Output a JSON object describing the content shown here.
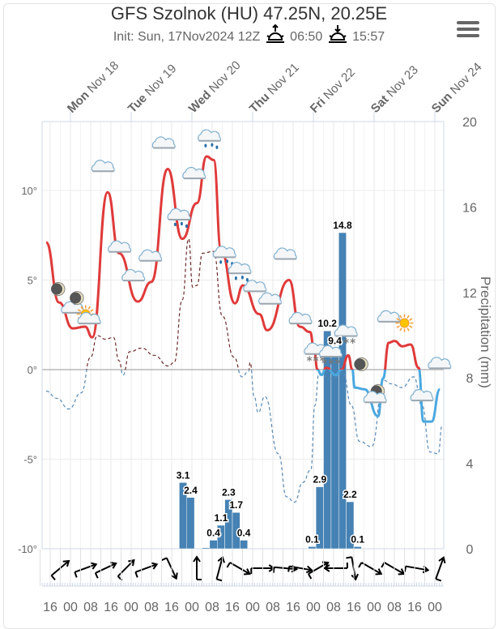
{
  "header": {
    "title": "GFS Szolnok (HU) 47.25N, 20.25E",
    "init": "Init: Sun, 17Nov2024 12Z",
    "sunrise": "06:50",
    "sunset": "15:57",
    "menu_icon": "hamburger-icon"
  },
  "chart_data": {
    "type": "meteogram",
    "title": "GFS Szolnok (HU) 47.25N, 20.25E",
    "x_unit": "hours since Mon Nov 18 00:00",
    "xlim": [
      -11.2,
      147.5
    ],
    "days": [
      {
        "name": "Mon",
        "date": "Nov 18"
      },
      {
        "name": "Tue",
        "date": "Nov 19"
      },
      {
        "name": "Wed",
        "date": "Nov 20"
      },
      {
        "name": "Thu",
        "date": "Nov 21"
      },
      {
        "name": "Fri",
        "date": "Nov 22"
      },
      {
        "name": "Sat",
        "date": "Nov 23"
      },
      {
        "name": "Sun",
        "date": "Nov 24"
      }
    ],
    "hour_ticks": [
      "16",
      "00",
      "08",
      "16",
      "00",
      "08",
      "16",
      "00",
      "08",
      "16",
      "00",
      "08",
      "16",
      "00",
      "08",
      "16",
      "00",
      "08",
      "16",
      "00"
    ],
    "temp_axis": {
      "ticks": [
        "10°",
        "5°",
        "0°",
        "-5°",
        "-10°"
      ],
      "values": [
        10,
        5,
        0,
        -5,
        -10
      ],
      "ylim": [
        -10,
        13.8
      ]
    },
    "precip_axis": {
      "label": "Precipitation (mm)",
      "ticks": [
        "20",
        "16",
        "12",
        "8",
        "4",
        "0"
      ],
      "values": [
        20,
        16,
        12,
        8,
        4,
        0
      ],
      "ylim": [
        0,
        20
      ]
    },
    "temperature": {
      "color_above": "#e03a3a",
      "color_below": "#4aa8e0",
      "h": [
        -9.6,
        -4.5,
        0.9,
        5.8,
        8.6,
        14.7,
        19.2,
        26.6,
        32,
        38.4,
        44.2,
        50,
        53.8,
        56.6,
        59.5,
        65,
        68.2,
        74.6,
        77.8,
        86.4,
        90.6,
        94.7,
        96.3,
        97.6,
        99.2,
        101.1,
        104.9,
        107.1,
        109.8,
        111.4,
        112.3,
        116.2,
        121.6,
        123.5,
        125.8,
        128,
        131.2,
        134.4,
        137.6,
        139.5,
        142.7,
        146
      ]
    },
    "temperature_values": [
      7.1,
      3.75,
      2.3,
      2.4,
      1.8,
      9.9,
      6.5,
      3.8,
      4.9,
      11.2,
      7.3,
      9.3,
      11.9,
      11.7,
      6.7,
      3.7,
      4.7,
      3.1,
      2.2,
      5.0,
      2.4,
      2.1,
      1.1,
      0,
      -0.3,
      0.1,
      -0.3,
      0,
      0.8,
      0,
      -1.0,
      -1.1,
      -2.6,
      -0.5,
      1.5,
      1.6,
      1.3,
      1.4,
      0.1,
      -2.9,
      -2.9,
      -1.1
    ],
    "dewpoint": {
      "h": [
        -9.6,
        -5.4,
        -0.6,
        4.2,
        8,
        10.6,
        13.8,
        17,
        19.2,
        20.8,
        23.4,
        28.2,
        33,
        38.7,
        41,
        44.2,
        46.7,
        48.3,
        50,
        52.2,
        56.6,
        60,
        64.6,
        67.8,
        70.4,
        71,
        72.6,
        74.2,
        76.8,
        82.2,
        85.4,
        88.6,
        91.8,
        95,
        96.6,
        98.2,
        103,
        107.8,
        111,
        114.2,
        119,
        123.8,
        127,
        130.9,
        135.7,
        138.9,
        142.1,
        145.3,
        146.9
      ],
      "values": [
        -1.2,
        -1.6,
        -2.2,
        -1.3,
        0.7,
        1.9,
        1.7,
        1.8,
        0.5,
        -0.3,
        1.0,
        1.2,
        0.8,
        0.2,
        0.4,
        3.9,
        7.3,
        4.6,
        4.7,
        6.5,
        6.6,
        3.0,
        0.7,
        -0.4,
        -0.1,
        0.4,
        -1.5,
        -2.4,
        -1.5,
        -4.7,
        -7.1,
        -7.4,
        -6.3,
        -5.6,
        -2.0,
        -0.2,
        -0.5,
        -0.2,
        -2.0,
        -4.0,
        -4.3,
        -0.6,
        -0.8,
        -1.0,
        -0.4,
        -2.0,
        -4.6,
        -4.7,
        -3.1
      ],
      "color_above": "#6b2a2a",
      "color_below": "#5a8ab5"
    },
    "precipitation": {
      "color": "#4682b4",
      "bar_hours": 3,
      "start_h": [
        43,
        46,
        52,
        55,
        58,
        61,
        64,
        67,
        94,
        97,
        100,
        103,
        106,
        109,
        112
      ],
      "values": [
        3.1,
        2.4,
        0.05,
        0.4,
        1.1,
        2.3,
        1.7,
        0.4,
        0.1,
        2.9,
        10.2,
        9.4,
        14.8,
        2.2,
        0.1
      ],
      "labels": [
        "3.1",
        "2.4",
        "",
        "0.4",
        "1.1",
        "2.3",
        "1.7",
        "0.4",
        "0.1",
        "2.9",
        "10.2",
        "9.4",
        "14.8",
        "2.2",
        "0.1"
      ]
    },
    "symbols": [
      {
        "type": "moon",
        "h": -4.8,
        "t": 4.5
      },
      {
        "type": "cloud",
        "h": 1,
        "t": 3.4
      },
      {
        "type": "moon",
        "h": 2.6,
        "t": 4.0
      },
      {
        "type": "sun",
        "h": 6,
        "t": 3.1
      },
      {
        "type": "cloud",
        "h": 7.5,
        "t": 2.8
      },
      {
        "type": "cloud",
        "h": 13,
        "t": 11.3
      },
      {
        "type": "cloud",
        "h": 19.5,
        "t": 6.8
      },
      {
        "type": "cloud",
        "h": 25,
        "t": 5.2
      },
      {
        "type": "cloud",
        "h": 31.7,
        "t": 6.3
      },
      {
        "type": "cloud",
        "h": 37,
        "t": 12.6
      },
      {
        "type": "rain",
        "h": 43,
        "t": 8.6
      },
      {
        "type": "cloud",
        "h": 49,
        "t": 10.9
      },
      {
        "type": "rain",
        "h": 55,
        "t": 13.0
      },
      {
        "type": "rain",
        "h": 61,
        "t": 6.5
      },
      {
        "type": "rain",
        "h": 67,
        "t": 5.6
      },
      {
        "type": "cloud",
        "h": 73,
        "t": 4.6
      },
      {
        "type": "cloud",
        "h": 79,
        "t": 3.9
      },
      {
        "type": "cloud",
        "h": 85,
        "t": 6.4
      },
      {
        "type": "cloud",
        "h": 91,
        "t": 2.8
      },
      {
        "type": "snow",
        "h": 97,
        "t": 1.1
      },
      {
        "type": "snow",
        "h": 103,
        "t": 0.95
      },
      {
        "type": "snow",
        "h": 109,
        "t": 2.1
      },
      {
        "type": "moon",
        "h": 115,
        "t": 0.3
      },
      {
        "type": "moon",
        "h": 121.5,
        "t": -1.2
      },
      {
        "type": "cloud",
        "h": 120.5,
        "t": -1.6
      },
      {
        "type": "cloud",
        "h": 126,
        "t": 2.9
      },
      {
        "type": "sun",
        "h": 132,
        "t": 2.6
      },
      {
        "type": "cloud",
        "h": 139,
        "t": -1.5
      },
      {
        "type": "cloud",
        "h": 146,
        "t": 0.3
      }
    ],
    "wind": {
      "h": [
        -6,
        4,
        12,
        20,
        28,
        38,
        48,
        57,
        65,
        74,
        83,
        89,
        96,
        103,
        110,
        117,
        126,
        135,
        144
      ],
      "direction_to_deg": [
        50,
        70,
        65,
        45,
        70,
        155,
        0,
        15,
        120,
        90,
        95,
        100,
        60,
        270,
        170,
        120,
        120,
        100,
        20
      ]
    },
    "grid": true
  }
}
